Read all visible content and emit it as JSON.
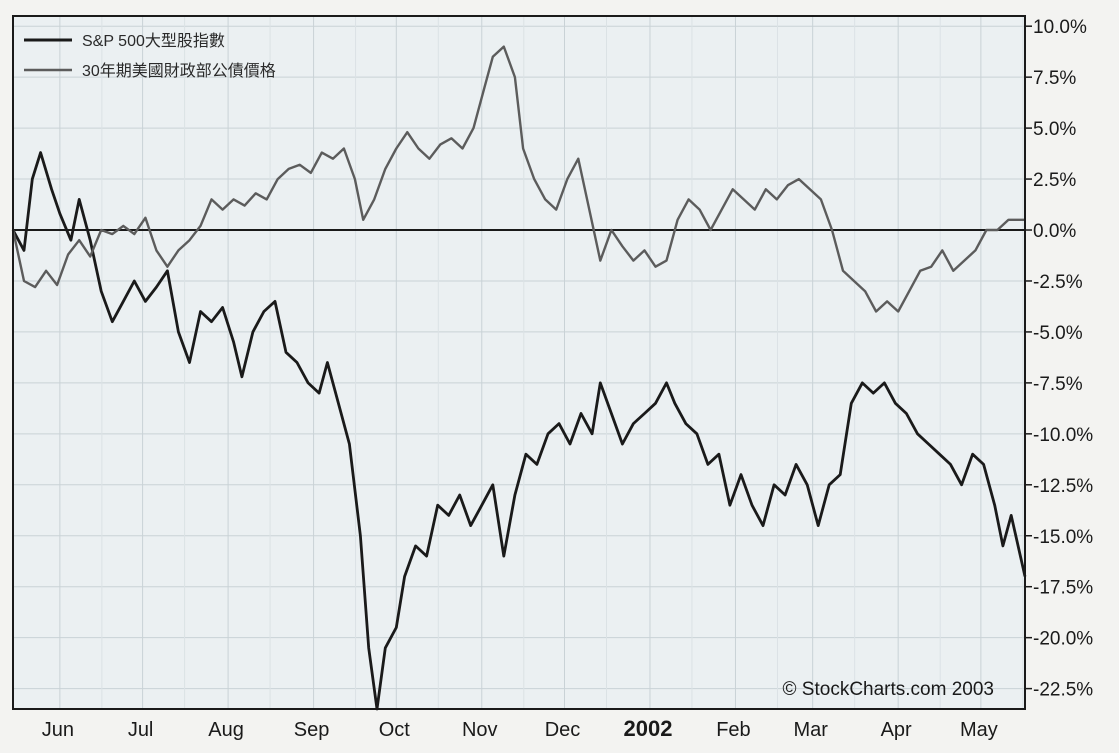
{
  "chart_data": {
    "type": "line",
    "title": "",
    "xlabel": "",
    "ylabel": "",
    "ylim": [
      -23.5,
      10.5
    ],
    "grid": true,
    "legend_position": "top-left",
    "y_ticks": [
      "10.0%",
      "7.5%",
      "5.0%",
      "2.5%",
      "0.0%",
      "-2.5%",
      "-5.0%",
      "-7.5%",
      "-10.0%",
      "-12.5%",
      "-15.0%",
      "-17.5%",
      "-20.0%",
      "-22.5%"
    ],
    "y_tick_values": [
      10,
      7.5,
      5,
      2.5,
      0,
      -2.5,
      -5,
      -7.5,
      -10,
      -12.5,
      -15,
      -17.5,
      -20,
      -22.5
    ],
    "x_ticks": [
      "Jun",
      "Jul",
      "Aug",
      "Sep",
      "Oct",
      "Nov",
      "Dec",
      "2002",
      "Feb",
      "Mar",
      "Apr",
      "May"
    ],
    "x_tick_dates": [
      "2001-06",
      "2001-07",
      "2001-08",
      "2001-09",
      "2001-10",
      "2001-11",
      "2001-12",
      "2002-01",
      "2002-02",
      "2002-03",
      "2002-04",
      "2002-05"
    ],
    "x_range": [
      "2001-05-15",
      "2002-05-17"
    ],
    "series": [
      {
        "name": "S&P 500大型股指數",
        "color": "#1a1a1a",
        "points": [
          [
            "2001-05-15",
            0.0
          ],
          [
            "2001-05-19",
            -1.0
          ],
          [
            "2001-05-22",
            2.5
          ],
          [
            "2001-05-25",
            3.8
          ],
          [
            "2001-05-29",
            2.0
          ],
          [
            "2001-06-01",
            0.8
          ],
          [
            "2001-06-05",
            -0.5
          ],
          [
            "2001-06-08",
            1.5
          ],
          [
            "2001-06-12",
            -0.5
          ],
          [
            "2001-06-16",
            -3.0
          ],
          [
            "2001-06-20",
            -4.5
          ],
          [
            "2001-06-24",
            -3.5
          ],
          [
            "2001-06-28",
            -2.5
          ],
          [
            "2001-07-02",
            -3.5
          ],
          [
            "2001-07-06",
            -2.8
          ],
          [
            "2001-07-10",
            -2.0
          ],
          [
            "2001-07-14",
            -5.0
          ],
          [
            "2001-07-18",
            -6.5
          ],
          [
            "2001-07-22",
            -4.0
          ],
          [
            "2001-07-26",
            -4.5
          ],
          [
            "2001-07-30",
            -3.8
          ],
          [
            "2001-08-03",
            -5.5
          ],
          [
            "2001-08-06",
            -7.2
          ],
          [
            "2001-08-10",
            -5.0
          ],
          [
            "2001-08-14",
            -4.0
          ],
          [
            "2001-08-18",
            -3.5
          ],
          [
            "2001-08-22",
            -6.0
          ],
          [
            "2001-08-26",
            -6.5
          ],
          [
            "2001-08-30",
            -7.5
          ],
          [
            "2001-09-03",
            -8.0
          ],
          [
            "2001-09-06",
            -6.5
          ],
          [
            "2001-09-10",
            -8.5
          ],
          [
            "2001-09-14",
            -10.5
          ],
          [
            "2001-09-18",
            -15.0
          ],
          [
            "2001-09-21",
            -20.5
          ],
          [
            "2001-09-24",
            -23.5
          ],
          [
            "2001-09-27",
            -20.5
          ],
          [
            "2001-10-01",
            -19.5
          ],
          [
            "2001-10-04",
            -17.0
          ],
          [
            "2001-10-08",
            -15.5
          ],
          [
            "2001-10-12",
            -16.0
          ],
          [
            "2001-10-16",
            -13.5
          ],
          [
            "2001-10-20",
            -14.0
          ],
          [
            "2001-10-24",
            -13.0
          ],
          [
            "2001-10-28",
            -14.5
          ],
          [
            "2001-11-01",
            -13.5
          ],
          [
            "2001-11-05",
            -12.5
          ],
          [
            "2001-11-09",
            -16.0
          ],
          [
            "2001-11-13",
            -13.0
          ],
          [
            "2001-11-17",
            -11.0
          ],
          [
            "2001-11-21",
            -11.5
          ],
          [
            "2001-11-25",
            -10.0
          ],
          [
            "2001-11-29",
            -9.5
          ],
          [
            "2001-12-03",
            -10.5
          ],
          [
            "2001-12-07",
            -9.0
          ],
          [
            "2001-12-11",
            -10.0
          ],
          [
            "2001-12-14",
            -7.5
          ],
          [
            "2001-12-18",
            -9.0
          ],
          [
            "2001-12-22",
            -10.5
          ],
          [
            "2001-12-26",
            -9.5
          ],
          [
            "2001-12-30",
            -9.0
          ],
          [
            "2002-01-03",
            -8.5
          ],
          [
            "2002-01-07",
            -7.5
          ],
          [
            "2002-01-10",
            -8.5
          ],
          [
            "2002-01-14",
            -9.5
          ],
          [
            "2002-01-18",
            -10.0
          ],
          [
            "2002-01-22",
            -11.5
          ],
          [
            "2002-01-26",
            -11.0
          ],
          [
            "2002-01-30",
            -13.5
          ],
          [
            "2002-02-03",
            -12.0
          ],
          [
            "2002-02-07",
            -13.5
          ],
          [
            "2002-02-11",
            -14.5
          ],
          [
            "2002-02-15",
            -12.5
          ],
          [
            "2002-02-19",
            -13.0
          ],
          [
            "2002-02-23",
            -11.5
          ],
          [
            "2002-02-27",
            -12.5
          ],
          [
            "2002-03-03",
            -14.5
          ],
          [
            "2002-03-07",
            -12.5
          ],
          [
            "2002-03-11",
            -12.0
          ],
          [
            "2002-03-15",
            -8.5
          ],
          [
            "2002-03-19",
            -7.5
          ],
          [
            "2002-03-23",
            -8.0
          ],
          [
            "2002-03-27",
            -7.5
          ],
          [
            "2002-03-31",
            -8.5
          ],
          [
            "2002-04-04",
            -9.0
          ],
          [
            "2002-04-08",
            -10.0
          ],
          [
            "2002-04-12",
            -10.5
          ],
          [
            "2002-04-16",
            -11.0
          ],
          [
            "2002-04-20",
            -11.5
          ],
          [
            "2002-04-24",
            -12.5
          ],
          [
            "2002-04-28",
            -11.0
          ],
          [
            "2002-05-02",
            -11.5
          ],
          [
            "2002-05-06",
            -13.5
          ],
          [
            "2002-05-09",
            -15.5
          ],
          [
            "2002-05-12",
            -14.0
          ],
          [
            "2002-05-17",
            -17.0
          ]
        ]
      },
      {
        "name": "30年期美國財政部公債價格",
        "color": "#5c5c5c",
        "points": [
          [
            "2001-05-15",
            0.0
          ],
          [
            "2001-05-19",
            -2.5
          ],
          [
            "2001-05-23",
            -2.8
          ],
          [
            "2001-05-27",
            -2.0
          ],
          [
            "2001-05-31",
            -2.7
          ],
          [
            "2001-06-04",
            -1.2
          ],
          [
            "2001-06-08",
            -0.5
          ],
          [
            "2001-06-12",
            -1.3
          ],
          [
            "2001-06-16",
            0.0
          ],
          [
            "2001-06-20",
            -0.2
          ],
          [
            "2001-06-24",
            0.2
          ],
          [
            "2001-06-28",
            -0.2
          ],
          [
            "2001-07-02",
            0.6
          ],
          [
            "2001-07-06",
            -1.0
          ],
          [
            "2001-07-10",
            -1.8
          ],
          [
            "2001-07-14",
            -1.0
          ],
          [
            "2001-07-18",
            -0.5
          ],
          [
            "2001-07-22",
            0.2
          ],
          [
            "2001-07-26",
            1.5
          ],
          [
            "2001-07-30",
            1.0
          ],
          [
            "2001-08-03",
            1.5
          ],
          [
            "2001-08-07",
            1.2
          ],
          [
            "2001-08-11",
            1.8
          ],
          [
            "2001-08-15",
            1.5
          ],
          [
            "2001-08-19",
            2.5
          ],
          [
            "2001-08-23",
            3.0
          ],
          [
            "2001-08-27",
            3.2
          ],
          [
            "2001-08-31",
            2.8
          ],
          [
            "2001-09-04",
            3.8
          ],
          [
            "2001-09-08",
            3.5
          ],
          [
            "2001-09-12",
            4.0
          ],
          [
            "2001-09-16",
            2.5
          ],
          [
            "2001-09-19",
            0.5
          ],
          [
            "2001-09-23",
            1.5
          ],
          [
            "2001-09-27",
            3.0
          ],
          [
            "2001-10-01",
            4.0
          ],
          [
            "2001-10-05",
            4.8
          ],
          [
            "2001-10-09",
            4.0
          ],
          [
            "2001-10-13",
            3.5
          ],
          [
            "2001-10-17",
            4.2
          ],
          [
            "2001-10-21",
            4.5
          ],
          [
            "2001-10-25",
            4.0
          ],
          [
            "2001-10-29",
            5.0
          ],
          [
            "2001-11-02",
            7.0
          ],
          [
            "2001-11-05",
            8.5
          ],
          [
            "2001-11-09",
            9.0
          ],
          [
            "2001-11-13",
            7.5
          ],
          [
            "2001-11-16",
            4.0
          ],
          [
            "2001-11-20",
            2.5
          ],
          [
            "2001-11-24",
            1.5
          ],
          [
            "2001-11-28",
            1.0
          ],
          [
            "2001-12-02",
            2.5
          ],
          [
            "2001-12-06",
            3.5
          ],
          [
            "2001-12-10",
            1.0
          ],
          [
            "2001-12-14",
            -1.5
          ],
          [
            "2001-12-18",
            0.0
          ],
          [
            "2001-12-22",
            -0.8
          ],
          [
            "2001-12-26",
            -1.5
          ],
          [
            "2001-12-30",
            -1.0
          ],
          [
            "2002-01-03",
            -1.8
          ],
          [
            "2002-01-07",
            -1.5
          ],
          [
            "2002-01-11",
            0.5
          ],
          [
            "2002-01-15",
            1.5
          ],
          [
            "2002-01-19",
            1.0
          ],
          [
            "2002-01-23",
            0.0
          ],
          [
            "2002-01-27",
            1.0
          ],
          [
            "2002-01-31",
            2.0
          ],
          [
            "2002-02-04",
            1.5
          ],
          [
            "2002-02-08",
            1.0
          ],
          [
            "2002-02-12",
            2.0
          ],
          [
            "2002-02-16",
            1.5
          ],
          [
            "2002-02-20",
            2.2
          ],
          [
            "2002-02-24",
            2.5
          ],
          [
            "2002-02-28",
            2.0
          ],
          [
            "2002-03-04",
            1.5
          ],
          [
            "2002-03-08",
            0.0
          ],
          [
            "2002-03-12",
            -2.0
          ],
          [
            "2002-03-16",
            -2.5
          ],
          [
            "2002-03-20",
            -3.0
          ],
          [
            "2002-03-24",
            -4.0
          ],
          [
            "2002-03-28",
            -3.5
          ],
          [
            "2002-04-01",
            -4.0
          ],
          [
            "2002-04-05",
            -3.0
          ],
          [
            "2002-04-09",
            -2.0
          ],
          [
            "2002-04-13",
            -1.8
          ],
          [
            "2002-04-17",
            -1.0
          ],
          [
            "2002-04-21",
            -2.0
          ],
          [
            "2002-04-25",
            -1.5
          ],
          [
            "2002-04-29",
            -1.0
          ],
          [
            "2002-05-03",
            0.0
          ],
          [
            "2002-05-07",
            0.0
          ],
          [
            "2002-05-11",
            0.5
          ],
          [
            "2002-05-17",
            0.5
          ]
        ]
      }
    ]
  },
  "credit": "© StockCharts.com 2003"
}
